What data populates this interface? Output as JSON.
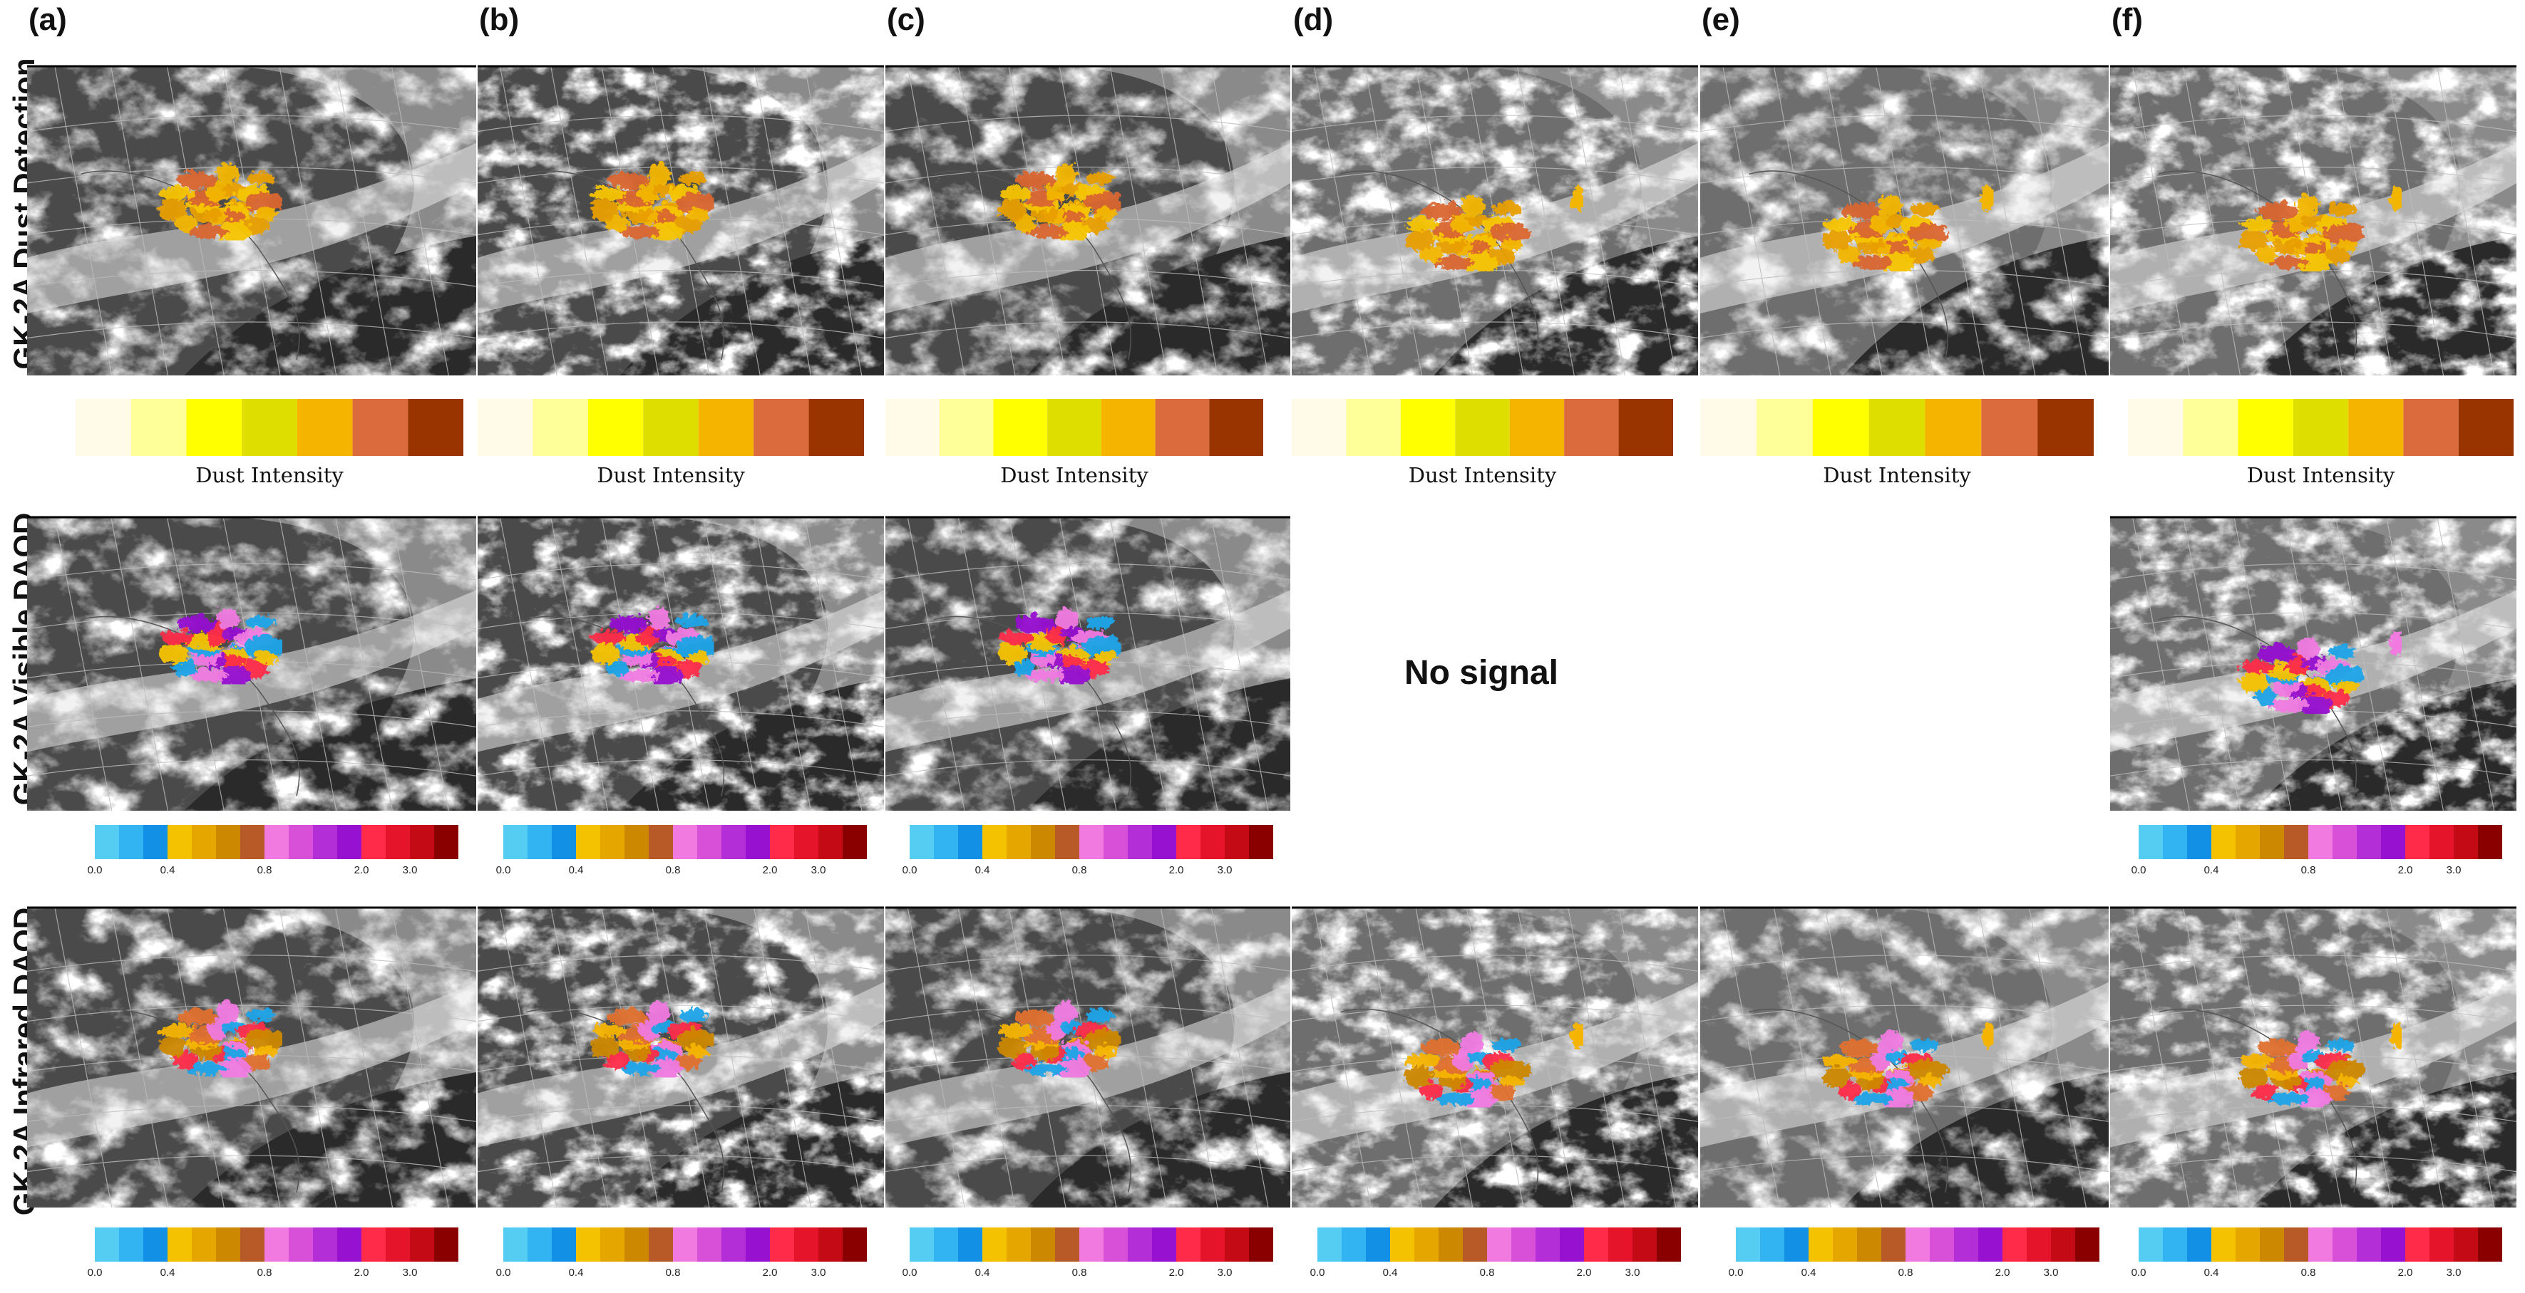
{
  "row_labels": [
    "GK-2A Dust Detection",
    "GK-2A Visible DAOD",
    "GK-2A Infrared DAOD"
  ],
  "panel_letters": [
    "(a)",
    "(b)",
    "(c)",
    "(d)",
    "(e)",
    "(f)"
  ],
  "dust_legend": {
    "title": "Dust Intensity",
    "colors": [
      "#fffbe8",
      "#ffff99",
      "#ffff00",
      "#dede00",
      "#f5b400",
      "#db6a3c",
      "#993300"
    ]
  },
  "daod_legend": {
    "colors": [
      "#55ccf2",
      "#33b4f2",
      "#1290e6",
      "#f5c200",
      "#e6a600",
      "#cc8800",
      "#b85a28",
      "#f07ae0",
      "#d850d8",
      "#b32ed6",
      "#9612d0",
      "#ff2b48",
      "#e6142a",
      "#c40a14",
      "#8a0000"
    ],
    "ticks": [
      {
        "label": "0.0",
        "index": 0
      },
      {
        "label": "0.4",
        "index": 3
      },
      {
        "label": "0.8",
        "index": 7
      },
      {
        "label": "2.0",
        "index": 11
      },
      {
        "label": "3.0",
        "index": 13
      }
    ]
  },
  "no_signal": "No signal",
  "visible_available": [
    true,
    true,
    true,
    false,
    false,
    true
  ],
  "dust_palettes": {
    "detection": [
      "#f2b600",
      "#e89e00",
      "#f5c400",
      "#d9652f"
    ],
    "visible": [
      "#f07ae0",
      "#1aa4e8",
      "#f5c200",
      "#ff2b48",
      "#9612d0"
    ],
    "infrared": [
      "#f5b400",
      "#e07030",
      "#f07ae0",
      "#1aa4e8",
      "#ff2b48",
      "#cc8800"
    ]
  }
}
